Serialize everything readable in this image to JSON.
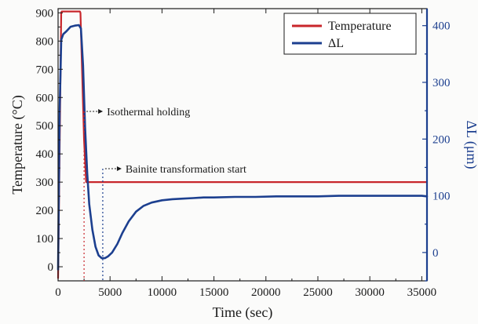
{
  "chart_data": {
    "type": "line",
    "xlabel": "Time (sec)",
    "ylabel": "Temperature (°C)",
    "y2label": "ΔL (μm)",
    "xlim": [
      0,
      35500
    ],
    "ylim": [
      -50,
      915
    ],
    "y2lim": [
      -50,
      430
    ],
    "x_ticks": [
      0,
      5000,
      10000,
      15000,
      20000,
      25000,
      30000,
      35000
    ],
    "x_tick_labels": [
      "0",
      "5000",
      "10000",
      "15000",
      "20000",
      "25000",
      "30000",
      "35000"
    ],
    "y_ticks": [
      0,
      100,
      200,
      300,
      400,
      500,
      600,
      700,
      800,
      900
    ],
    "y_tick_labels": [
      "0",
      "100",
      "200",
      "300",
      "400",
      "500",
      "600",
      "700",
      "800",
      "900"
    ],
    "y2_ticks": [
      0,
      100,
      200,
      300,
      400
    ],
    "y2_tick_labels": [
      "0",
      "100",
      "200",
      "300",
      "400"
    ],
    "legend_position": "top-right",
    "series": [
      {
        "name": "Temperature",
        "axis": "left",
        "color": "#c8262b",
        "x": [
          0,
          300,
          350,
          2100,
          2150,
          2500,
          2700,
          35500
        ],
        "y": [
          -40,
          900,
          905,
          905,
          900,
          450,
          300,
          300
        ]
      },
      {
        "name": "ΔL",
        "axis": "right",
        "color": "#1c3f8f",
        "x": [
          0,
          150,
          300,
          500,
          800,
          1200,
          1600,
          2000,
          2200,
          2400,
          2600,
          2800,
          3000,
          3300,
          3600,
          3900,
          4200,
          4500,
          4800,
          5200,
          5700,
          6200,
          6800,
          7500,
          8200,
          9000,
          10000,
          11000,
          12000,
          13000,
          14000,
          15000,
          17000,
          19000,
          21000,
          23000,
          25000,
          27000,
          29000,
          31000,
          33000,
          35000,
          35500
        ],
        "y": [
          -30,
          250,
          375,
          385,
          390,
          398,
          400,
          401,
          395,
          330,
          220,
          140,
          85,
          40,
          10,
          -5,
          -10,
          -10,
          -7,
          0,
          15,
          35,
          55,
          72,
          82,
          88,
          92,
          94,
          95,
          96,
          97,
          97,
          98,
          98,
          99,
          99,
          99,
          100,
          100,
          100,
          100,
          100,
          99
        ]
      }
    ],
    "annotations": [
      {
        "text": "Isothermal holding",
        "x": 2500
      },
      {
        "text": "Bainite transformation start",
        "x": 4300
      }
    ]
  }
}
